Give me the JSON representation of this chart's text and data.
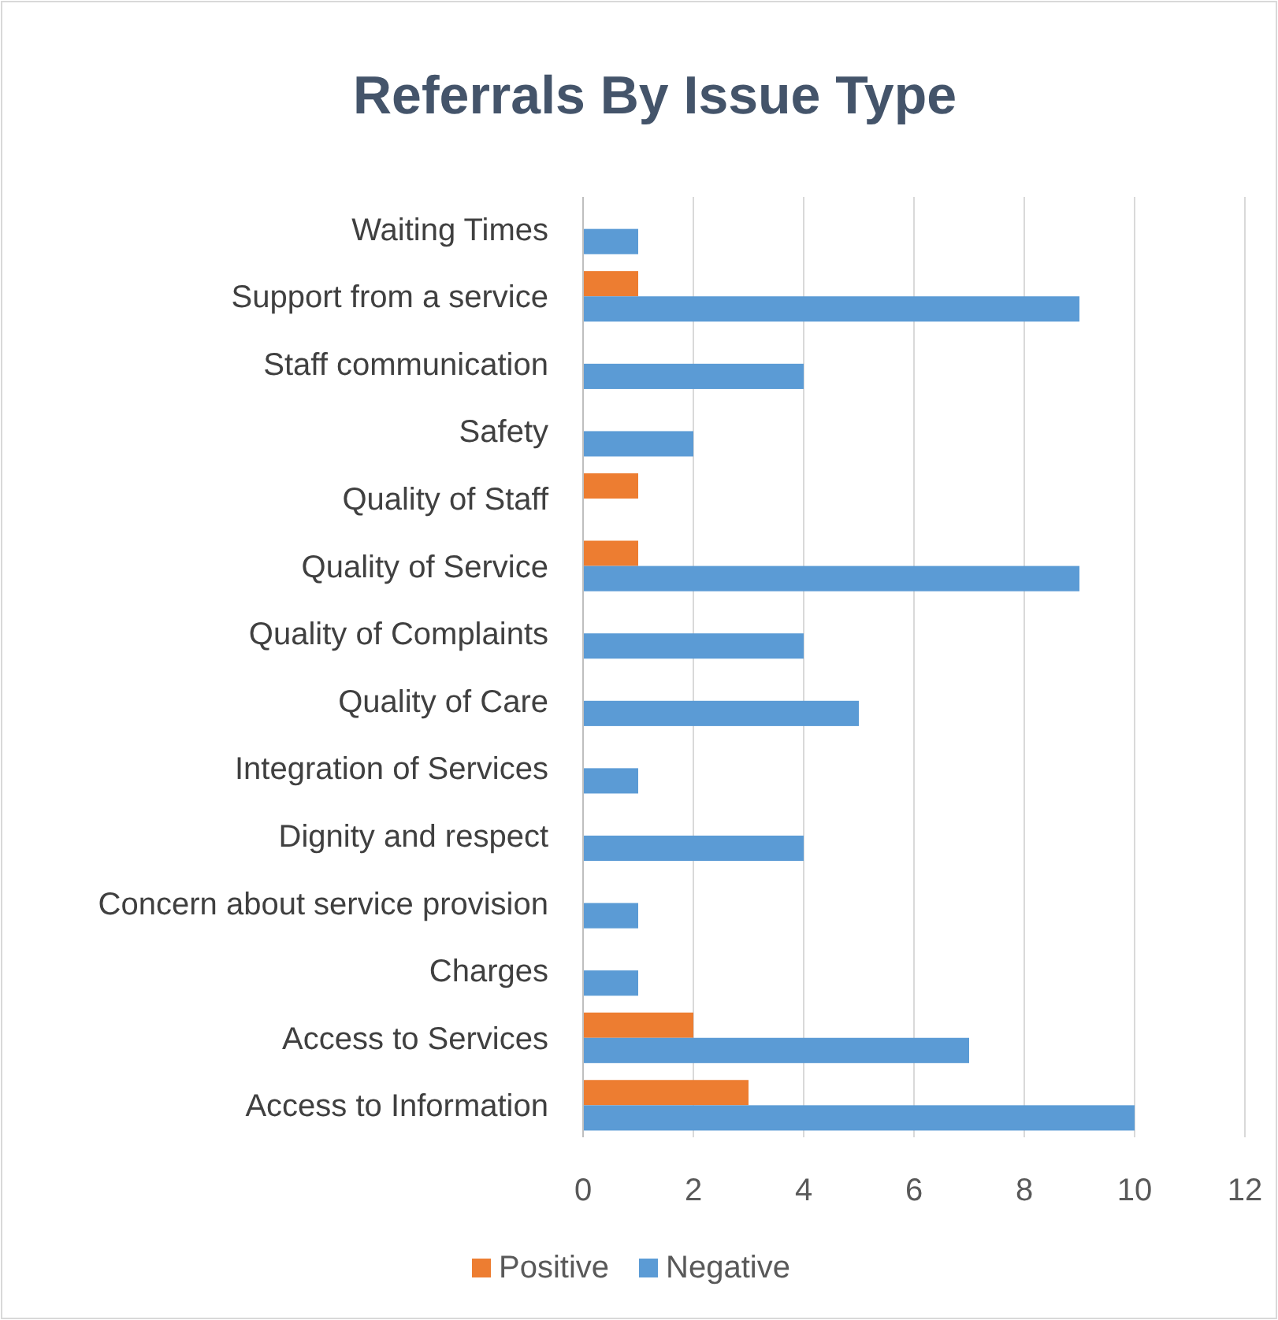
{
  "chart_data": {
    "type": "bar",
    "orientation": "horizontal",
    "title": "Referrals By Issue Type",
    "categories": [
      "Waiting Times",
      "Support from a service",
      "Staff communication",
      "Safety",
      "Quality of Staff",
      "Quality of Service",
      "Quality of Complaints",
      "Quality of Care",
      "Integration of Services",
      "Dignity and respect",
      "Concern about service provision",
      "Charges",
      "Access to Services",
      "Access to Information"
    ],
    "series": [
      {
        "name": "Positive",
        "color": "#ed7d31",
        "values": [
          null,
          1,
          null,
          null,
          1,
          1,
          null,
          null,
          null,
          null,
          null,
          null,
          2,
          3
        ]
      },
      {
        "name": "Negative",
        "color": "#5b9bd5",
        "values": [
          1,
          9,
          4,
          2,
          null,
          9,
          4,
          5,
          1,
          4,
          1,
          1,
          7,
          10
        ]
      }
    ],
    "xlim": [
      0,
      12
    ],
    "xticks": [
      0,
      2,
      4,
      6,
      8,
      10,
      12
    ],
    "grid": "x",
    "legend": "bottom"
  }
}
